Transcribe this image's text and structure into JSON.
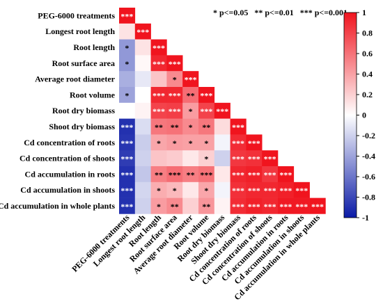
{
  "chart_data": {
    "type": "heatmap",
    "layout": "lower-triangle",
    "title": "",
    "variables": [
      "PEG-6000 treatments",
      "Longest root length",
      "Root length",
      "Root surface area",
      "Average root diameter",
      "Root volume",
      "Root dry biomass",
      "Shoot dry biomass",
      "Cd concentration of roots",
      "Cd concentration of shoots",
      "Cd accumulation in roots",
      "Cd accumulation in shoots",
      "Cd accumulation in whole plants"
    ],
    "values": [
      [
        1
      ],
      [
        0.12,
        1
      ],
      [
        -0.45,
        0.12,
        1
      ],
      [
        -0.45,
        0.03,
        0.92,
        1
      ],
      [
        -0.35,
        -0.1,
        0.25,
        0.5,
        1
      ],
      [
        -0.4,
        0.0,
        0.92,
        0.92,
        0.62,
        1
      ],
      [
        0.0,
        0.05,
        0.8,
        0.82,
        0.42,
        0.8,
        1
      ],
      [
        -0.9,
        -0.15,
        0.58,
        0.6,
        0.5,
        0.58,
        0.15,
        1
      ],
      [
        -0.88,
        -0.22,
        0.38,
        0.42,
        0.4,
        0.4,
        -0.05,
        0.9,
        1
      ],
      [
        -0.85,
        -0.2,
        0.25,
        0.22,
        0.1,
        0.2,
        -0.2,
        0.85,
        0.88,
        1
      ],
      [
        -0.9,
        -0.25,
        0.55,
        0.62,
        0.55,
        0.6,
        0.1,
        0.92,
        0.95,
        0.85,
        1
      ],
      [
        -0.9,
        -0.18,
        0.35,
        0.3,
        0.1,
        0.38,
        -0.05,
        0.88,
        0.92,
        0.92,
        0.95,
        1
      ],
      [
        -0.9,
        -0.2,
        0.42,
        0.5,
        0.2,
        0.45,
        0.05,
        0.9,
        0.95,
        0.92,
        0.98,
        0.98,
        1
      ]
    ],
    "significance": [
      [
        "***"
      ],
      [
        "",
        "***"
      ],
      [
        "*",
        "",
        "***"
      ],
      [
        "*",
        "",
        "***",
        "***"
      ],
      [
        "",
        "",
        "",
        "*",
        "***"
      ],
      [
        "*",
        "",
        "***",
        "***",
        "**",
        "***"
      ],
      [
        "",
        "",
        "***",
        "***",
        "*",
        "***",
        "***"
      ],
      [
        "***",
        "",
        "**",
        "**",
        "*",
        "**",
        "",
        "***"
      ],
      [
        "***",
        "",
        "*",
        "*",
        "*",
        "*",
        "",
        "***",
        "***"
      ],
      [
        "***",
        "",
        "",
        "",
        "",
        "*",
        "",
        "***",
        "***",
        "***"
      ],
      [
        "***",
        "",
        "**",
        "***",
        "**",
        "***",
        "",
        "***",
        "***",
        "***",
        "***"
      ],
      [
        "***",
        "",
        "*",
        "*",
        "",
        "*",
        "",
        "***",
        "***",
        "***",
        "***",
        "***"
      ],
      [
        "***",
        "",
        "*",
        "**",
        "",
        "**",
        "",
        "***",
        "***",
        "***",
        "***",
        "***",
        "***"
      ]
    ],
    "legend_text": "* p<=0.05   ** p<=0.01   *** p<=0.001",
    "colorbar": {
      "range": [
        -1,
        1
      ],
      "ticks": [
        "1",
        "0.8",
        "0.6",
        "0.4",
        "0.2",
        "0",
        "-0.2",
        "-0.4",
        "-0.6",
        "-0.8",
        "-1"
      ],
      "colors": {
        "negative": "#0a1aa6",
        "neutral": "#ffffff",
        "positive": "#f0141e"
      }
    }
  }
}
